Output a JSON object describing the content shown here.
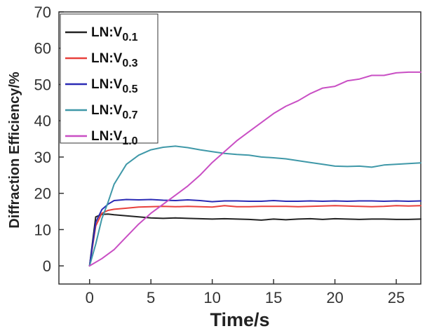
{
  "chart_data": {
    "type": "line",
    "xlabel": "Time/s",
    "ylabel": "Diffraction Efficiency/%",
    "xlim": [
      -2.5,
      27
    ],
    "ylim": [
      -5,
      70
    ],
    "xticks": [
      0,
      5,
      10,
      15,
      20,
      25
    ],
    "yticks": [
      0,
      10,
      20,
      30,
      40,
      50,
      60,
      70
    ],
    "grid": false,
    "legend_position": "top-left",
    "series": [
      {
        "name": "LN:V0.1",
        "label_base": "LN:V",
        "label_sub": "0.1",
        "color": "#222222",
        "x": [
          0,
          0.5,
          1,
          1.5,
          2,
          3,
          4,
          5,
          6,
          7,
          8,
          9,
          10,
          11,
          12,
          13,
          14,
          15,
          16,
          17,
          18,
          19,
          20,
          21,
          22,
          23,
          24,
          25,
          26,
          27
        ],
        "y": [
          0,
          13.5,
          14.2,
          14.3,
          14.1,
          13.8,
          13.5,
          13.2,
          13.1,
          13.2,
          13.1,
          13.0,
          12.9,
          13.0,
          12.9,
          12.8,
          12.6,
          12.9,
          12.7,
          12.9,
          13.0,
          12.8,
          13.0,
          12.9,
          12.8,
          12.9,
          12.9,
          12.8,
          12.8,
          12.9
        ]
      },
      {
        "name": "LN:V0.3",
        "label_base": "LN:V",
        "label_sub": "0.3",
        "color": "#e8413c",
        "x": [
          0,
          0.5,
          1,
          1.5,
          2,
          3,
          4,
          5,
          6,
          7,
          8,
          9,
          10,
          11,
          12,
          13,
          14,
          15,
          16,
          17,
          18,
          19,
          20,
          21,
          22,
          23,
          24,
          25,
          26,
          27
        ],
        "y": [
          0,
          11.0,
          14.5,
          15.3,
          15.6,
          15.9,
          16.2,
          16.3,
          16.4,
          16.3,
          16.4,
          16.3,
          16.2,
          16.6,
          16.3,
          16.3,
          16.4,
          16.4,
          16.4,
          16.3,
          16.4,
          16.5,
          16.6,
          16.5,
          16.4,
          16.3,
          16.4,
          16.6,
          16.5,
          16.6
        ]
      },
      {
        "name": "LN:V0.5",
        "label_base": "LN:V",
        "label_sub": "0.5",
        "color": "#2b2bb5",
        "x": [
          0,
          0.5,
          1,
          1.5,
          2,
          3,
          4,
          5,
          6,
          7,
          8,
          9,
          10,
          11,
          12,
          13,
          14,
          15,
          16,
          17,
          18,
          19,
          20,
          21,
          22,
          23,
          24,
          25,
          26,
          27
        ],
        "y": [
          0,
          12.0,
          15.5,
          17.0,
          18.0,
          18.3,
          18.2,
          18.3,
          18.1,
          18.0,
          18.2,
          18.0,
          17.7,
          17.9,
          17.9,
          17.8,
          17.8,
          18.0,
          17.8,
          17.8,
          17.9,
          17.8,
          17.9,
          17.8,
          17.9,
          17.9,
          17.8,
          17.9,
          17.8,
          17.9
        ]
      },
      {
        "name": "LN:V0.7",
        "label_base": "LN:V",
        "label_sub": "0.7",
        "color": "#3f98a8",
        "x": [
          0,
          0.5,
          1,
          1.5,
          2,
          3,
          4,
          5,
          6,
          7,
          8,
          9,
          10,
          11,
          12,
          13,
          14,
          15,
          16,
          17,
          18,
          19,
          20,
          21,
          22,
          23,
          24,
          25,
          26,
          27
        ],
        "y": [
          0,
          6.0,
          13.0,
          17.5,
          22.5,
          28.0,
          30.5,
          32.0,
          32.7,
          33.0,
          32.6,
          32.0,
          31.5,
          31.0,
          30.7,
          30.5,
          30.0,
          29.8,
          29.5,
          29.0,
          28.5,
          28.0,
          27.5,
          27.4,
          27.5,
          27.2,
          27.8,
          28.0,
          28.2,
          28.4
        ]
      },
      {
        "name": "LN:V1.0",
        "label_base": "LN:V",
        "label_sub": "1.0",
        "color": "#c94fc4",
        "x": [
          0,
          1,
          2,
          3,
          4,
          5,
          6,
          7,
          8,
          9,
          10,
          11,
          12,
          13,
          14,
          15,
          16,
          17,
          18,
          19,
          20,
          21,
          22,
          23,
          24,
          25,
          26,
          27
        ],
        "y": [
          0,
          2.0,
          4.5,
          8.0,
          11.5,
          14.5,
          17.0,
          19.5,
          22.0,
          25.0,
          28.5,
          31.5,
          34.5,
          37.0,
          39.5,
          42.0,
          44.0,
          45.5,
          47.5,
          49.0,
          49.5,
          51.0,
          51.5,
          52.5,
          52.5,
          53.2,
          53.4,
          53.4
        ]
      }
    ]
  }
}
